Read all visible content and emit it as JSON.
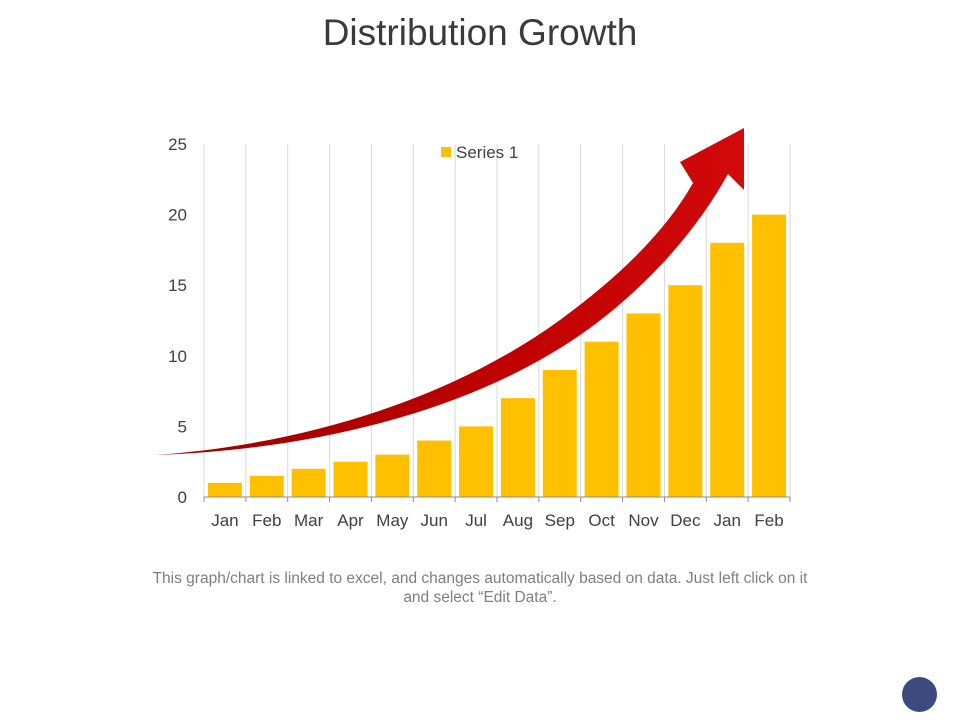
{
  "slide": {
    "title": "Distribution Growth",
    "caption": "This graph/chart is linked to excel, and changes automatically based on data. Just left click on it and select “Edit Data”."
  },
  "chart_data": {
    "type": "bar",
    "title": "Distribution Growth",
    "categories": [
      "Jan",
      "Feb",
      "Mar",
      "Apr",
      "May",
      "Jun",
      "Jul",
      "Aug",
      "Sep",
      "Oct",
      "Nov",
      "Dec",
      "Jan",
      "Feb"
    ],
    "series": [
      {
        "name": "Series 1",
        "values": [
          1,
          1.5,
          2,
          2.5,
          3,
          4,
          5,
          7,
          9,
          11,
          13,
          15,
          18,
          20
        ],
        "color": "#ffc000"
      }
    ],
    "ylim": [
      0,
      25
    ],
    "yticks": [
      0,
      5,
      10,
      15,
      20,
      25
    ],
    "xlabel": "",
    "ylabel": "",
    "grid": "vertical",
    "legend": "top-center",
    "annotation": "upward growth arrow",
    "colors": {
      "bar": "#ffc000",
      "arrow": "#c0000b",
      "grid": "#d9d9d9",
      "axis": "#8c8c8c"
    }
  }
}
